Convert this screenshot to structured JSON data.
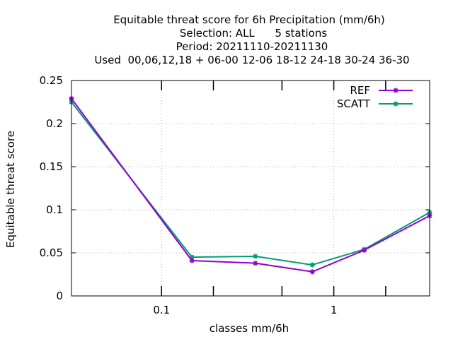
{
  "chart_data": {
    "type": "line",
    "title_lines": [
      "Equitable threat score  for 6h Precipitation (mm/6h)",
      "Selection: ALL      5 stations",
      "Period: 20211110-20211130",
      "Used  00,06,12,18 + 06-00 12-06 18-12 24-18 30-24 36-30"
    ],
    "xlabel": "classes mm/6h",
    "ylabel": "Equitable threat score",
    "x_scale": "log",
    "xlim": [
      0.03,
      3.6
    ],
    "ylim": [
      0,
      0.25
    ],
    "x_ticks": [
      {
        "value": 0.1,
        "label": "0.1"
      },
      {
        "value": 1,
        "label": "1"
      }
    ],
    "x_minor_ticks": [
      0.2,
      0.5,
      2
    ],
    "y_ticks": [
      {
        "value": 0,
        "label": "0"
      },
      {
        "value": 0.05,
        "label": "0.05"
      },
      {
        "value": 0.1,
        "label": "0.1"
      },
      {
        "value": 0.15,
        "label": "0.15"
      },
      {
        "value": 0.2,
        "label": "0.2"
      },
      {
        "value": 0.25,
        "label": "0.25"
      }
    ],
    "grid": true,
    "legend_position": "top-right",
    "series": [
      {
        "name": "REF",
        "color": "#9400d3",
        "x": [
          0.03,
          0.15,
          0.35,
          0.75,
          1.5,
          3.6
        ],
        "y": [
          0.229,
          0.041,
          0.038,
          0.028,
          0.053,
          0.093
        ]
      },
      {
        "name": "SCATT",
        "color": "#009e73",
        "x": [
          0.03,
          0.15,
          0.35,
          0.75,
          1.5,
          3.6
        ],
        "y": [
          0.225,
          0.045,
          0.046,
          0.036,
          0.054,
          0.097
        ]
      }
    ]
  }
}
